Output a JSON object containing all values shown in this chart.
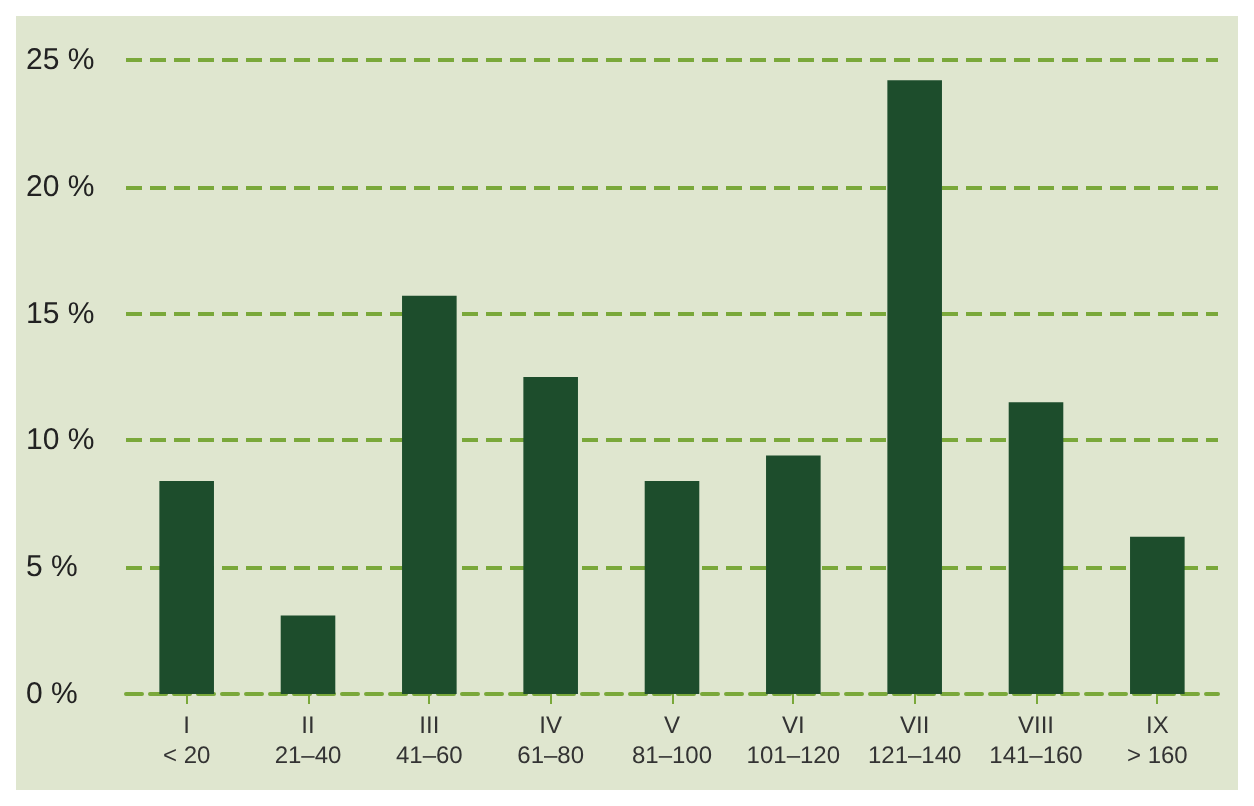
{
  "chart_data": {
    "type": "bar",
    "categories": [
      "I\n< 20",
      "II\n21–40",
      "III\n41–60",
      "IV\n61–80",
      "V\n81–100",
      "VI\n101–120",
      "VII\n121–140",
      "VIII\n141–160",
      "IX\n> 160"
    ],
    "values": [
      8.4,
      3.1,
      15.7,
      12.5,
      8.4,
      9.4,
      24.2,
      11.5,
      6.2
    ],
    "color": "#1d4d2c",
    "ylim": [
      0,
      25
    ],
    "yticks": [
      {
        "value": 0,
        "label": "0 %"
      },
      {
        "value": 5,
        "label": "5 %"
      },
      {
        "value": 10,
        "label": "10 %"
      },
      {
        "value": 15,
        "label": "15 %"
      },
      {
        "value": 20,
        "label": "20 %"
      },
      {
        "value": 25,
        "label": "25 %"
      }
    ],
    "grid": "y"
  }
}
